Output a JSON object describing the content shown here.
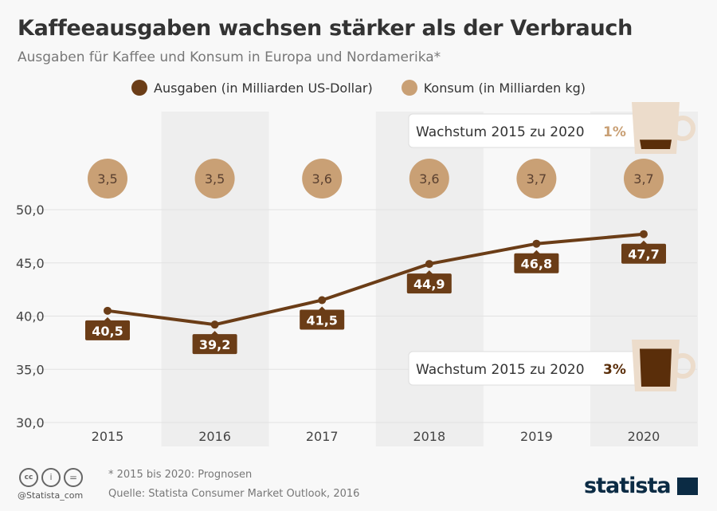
{
  "title": "Kaffeeausgaben wachsen stärker als der Verbrauch",
  "subtitle": "Ausgaben für Kaffee und Konsum in Europa und Nordamerika*",
  "chart_data": {
    "type": "line",
    "categories": [
      "2015",
      "2016",
      "2017",
      "2018",
      "2019",
      "2020"
    ],
    "series": [
      {
        "name": "Ausgaben (in Milliarden US-Dollar)",
        "values": [
          40.5,
          39.2,
          41.5,
          44.9,
          46.8,
          47.7
        ],
        "labels": [
          "40,5",
          "39,2",
          "41,5",
          "44,9",
          "46,8",
          "47,7"
        ],
        "color": "#6b3d17"
      },
      {
        "name": "Konsum (in Milliarden kg)",
        "values": [
          3.5,
          3.5,
          3.6,
          3.6,
          3.7,
          3.7
        ],
        "labels": [
          "3,5",
          "3,5",
          "3,6",
          "3,6",
          "3,7",
          "3,7"
        ],
        "color": "#c9a075"
      }
    ],
    "yticks": [
      "50,0",
      "45,0",
      "40,0",
      "35,0",
      "30,0"
    ],
    "ylim": [
      30,
      50
    ],
    "grid": true,
    "legend": "top",
    "annotations": [
      {
        "text": "Wachstum 2015 zu 2020",
        "value": "1%",
        "series": "Konsum"
      },
      {
        "text": "Wachstum 2015 zu 2020",
        "value": "3%",
        "series": "Ausgaben"
      }
    ]
  },
  "footer": {
    "note": "* 2015 bis 2020: Prognosen",
    "source": "Quelle: Statista Consumer Market Outlook, 2016",
    "handle": "@Statista_com",
    "logo": "statista"
  }
}
